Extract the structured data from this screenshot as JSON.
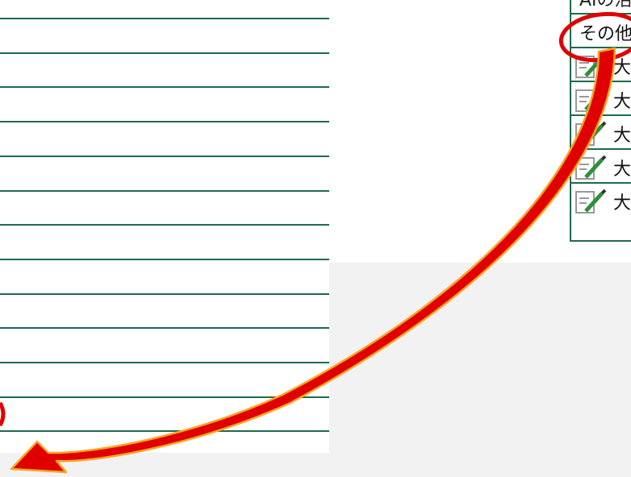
{
  "list": {
    "top_partial_label": "AIの活用",
    "rows": [
      {
        "label": "その他",
        "icon": "none"
      },
      {
        "label": "大",
        "icon": "memo-pencil-icon"
      },
      {
        "label": "大",
        "icon": "memo-pencil-icon"
      },
      {
        "label": "大",
        "icon": "memo-pencil-icon"
      },
      {
        "label": "大",
        "icon": "memo-pencil-icon"
      },
      {
        "label": "大",
        "icon": "memo-pencil-icon"
      }
    ]
  },
  "annotation": {
    "arrow_color": "#e00000",
    "arrow_outline_color": "#f5a623",
    "circle_color": "#e00000"
  },
  "colors": {
    "grid_line": "#1e6b4a",
    "background": "#f2f2f2"
  }
}
